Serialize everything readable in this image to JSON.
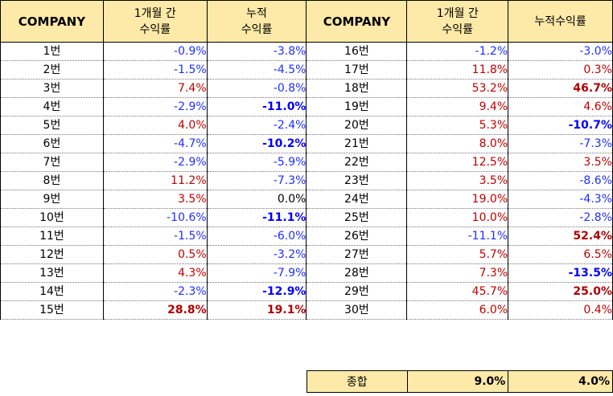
{
  "header": {
    "company": "COMPANY",
    "monthly_line1": "1개월 간",
    "monthly_line2": "수익률",
    "cumulative_line1": "누적",
    "cumulative_line2": "수익률",
    "cumulative_single": "누적수익률"
  },
  "left_rows": [
    {
      "name": "1번",
      "monthly": "-0.9%",
      "cumulative": "-3.8%"
    },
    {
      "name": "2번",
      "monthly": "-1.5%",
      "cumulative": "-4.5%"
    },
    {
      "name": "3번",
      "monthly": "7.4%",
      "cumulative": "-0.8%"
    },
    {
      "name": "4번",
      "monthly": "-2.9%",
      "cumulative": "-11.0%"
    },
    {
      "name": "5번",
      "monthly": "4.0%",
      "cumulative": "-2.4%"
    },
    {
      "name": "6번",
      "monthly": "-4.7%",
      "cumulative": "-10.2%"
    },
    {
      "name": "7번",
      "monthly": "-2.9%",
      "cumulative": "-5.9%"
    },
    {
      "name": "8번",
      "monthly": "11.2%",
      "cumulative": "-7.3%"
    },
    {
      "name": "9번",
      "monthly": "3.5%",
      "cumulative": "0.0%"
    },
    {
      "name": "10번",
      "monthly": "-10.6%",
      "cumulative": "-11.1%"
    },
    {
      "name": "11번",
      "monthly": "-1.5%",
      "cumulative": "-6.0%"
    },
    {
      "name": "12번",
      "monthly": "0.5%",
      "cumulative": "-3.2%"
    },
    {
      "name": "13번",
      "monthly": "4.3%",
      "cumulative": "-7.9%"
    },
    {
      "name": "14번",
      "monthly": "-2.3%",
      "cumulative": "-12.9%"
    },
    {
      "name": "15번",
      "monthly": "28.8%",
      "cumulative": "19.1%"
    }
  ],
  "right_rows": [
    {
      "name": "16번",
      "monthly": "-1.2%",
      "cumulative": "-3.0%"
    },
    {
      "name": "17번",
      "monthly": "11.8%",
      "cumulative": "0.3%"
    },
    {
      "name": "18번",
      "monthly": "53.2%",
      "cumulative": "46.7%"
    },
    {
      "name": "19번",
      "monthly": "9.4%",
      "cumulative": "4.6%"
    },
    {
      "name": "20번",
      "monthly": "5.3%",
      "cumulative": "-10.7%"
    },
    {
      "name": "21번",
      "monthly": "8.0%",
      "cumulative": "-7.3%"
    },
    {
      "name": "22번",
      "monthly": "12.5%",
      "cumulative": "3.5%"
    },
    {
      "name": "23번",
      "monthly": "3.5%",
      "cumulative": "-8.6%"
    },
    {
      "name": "24번",
      "monthly": "19.0%",
      "cumulative": "-4.3%"
    },
    {
      "name": "25번",
      "monthly": "10.0%",
      "cumulative": "-2.8%"
    },
    {
      "name": "26번",
      "monthly": "-11.1%",
      "cumulative": "52.4%"
    },
    {
      "name": "27번",
      "monthly": "5.7%",
      "cumulative": "6.5%"
    },
    {
      "name": "28번",
      "monthly": "7.3%",
      "cumulative": "-13.5%"
    },
    {
      "name": "29번",
      "monthly": "45.7%",
      "cumulative": "25.0%"
    },
    {
      "name": "30번",
      "monthly": "6.0%",
      "cumulative": "0.4%"
    }
  ],
  "summary": {
    "label": "종합",
    "monthly": "9.0%",
    "cumulative": "4.0%"
  },
  "colors": {
    "header_bg": "#fde9a8",
    "negative": "#1f2fff",
    "positive": "#c00000"
  }
}
